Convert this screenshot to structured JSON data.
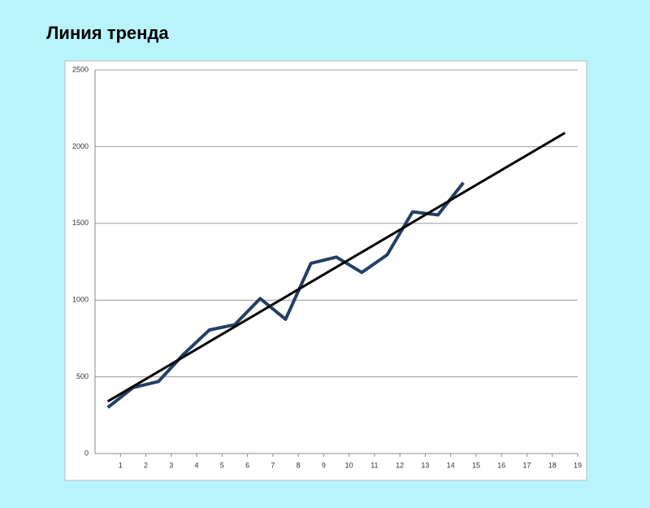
{
  "chart_data": {
    "type": "line",
    "title": "Линия тренда",
    "series": [
      {
        "color": "#243f66",
        "x": [
          0.5,
          1.5,
          2.5,
          3.5,
          4.5,
          5.5,
          6.5,
          7.5,
          8.5,
          9.5,
          10.5,
          11.5,
          12.5,
          13.5,
          14.5
        ],
        "values": [
          300,
          430,
          470,
          650,
          805,
          840,
          1010,
          875,
          1240,
          1280,
          1180,
          1295,
          1575,
          1555,
          1765
        ]
      },
      {
        "color": "#000000",
        "x": [
          0.5,
          18.5
        ],
        "values": [
          340,
          2090
        ]
      }
    ],
    "xlim": [
      0,
      19
    ],
    "xticks": [
      1,
      2,
      3,
      4,
      5,
      6,
      7,
      8,
      9,
      10,
      11,
      12,
      13,
      14,
      15,
      16,
      17,
      18,
      19
    ],
    "ylim": [
      0,
      2500
    ],
    "yticks": [
      0,
      500,
      1000,
      1500,
      2000,
      2500
    ],
    "grid": true
  }
}
